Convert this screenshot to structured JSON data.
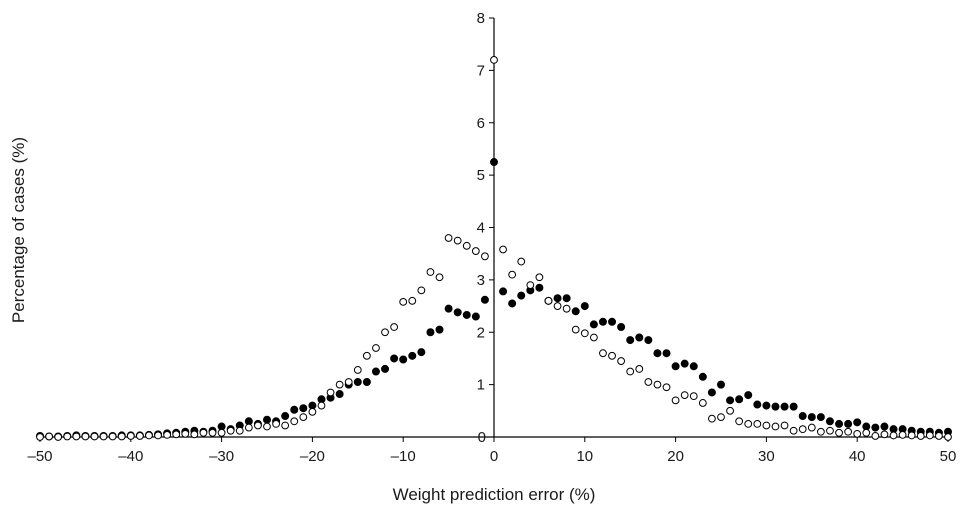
{
  "chart_data": {
    "type": "scatter",
    "title": "",
    "xlabel": "Weight prediction error (%)",
    "ylabel": "Percentage of cases (%)",
    "xlim": [
      -50,
      50
    ],
    "ylim": [
      0,
      8
    ],
    "xticks": [
      -50,
      -40,
      -30,
      -20,
      -10,
      0,
      10,
      20,
      30,
      40,
      50
    ],
    "yticks": [
      1,
      2,
      3,
      4,
      5,
      6,
      7,
      8
    ],
    "x_tick_labels": [
      "–50",
      "–40",
      "–30",
      "–20",
      "–10",
      "0",
      "10",
      "20",
      "30",
      "40",
      "50"
    ],
    "y_tick_labels": [
      "1",
      "2",
      "3",
      "4",
      "5",
      "6",
      "7",
      "8"
    ],
    "grid": false,
    "legend": "none",
    "x": [
      -50,
      -49,
      -48,
      -47,
      -46,
      -45,
      -44,
      -43,
      -42,
      -41,
      -40,
      -39,
      -38,
      -37,
      -36,
      -35,
      -34,
      -33,
      -32,
      -31,
      -30,
      -29,
      -28,
      -27,
      -26,
      -25,
      -24,
      -23,
      -22,
      -21,
      -20,
      -19,
      -18,
      -17,
      -16,
      -15,
      -14,
      -13,
      -12,
      -11,
      -10,
      -9,
      -8,
      -7,
      -6,
      -5,
      -4,
      -3,
      -2,
      -1,
      0,
      1,
      2,
      3,
      4,
      5,
      6,
      7,
      8,
      9,
      10,
      11,
      12,
      13,
      14,
      15,
      16,
      17,
      18,
      19,
      20,
      21,
      22,
      23,
      24,
      25,
      26,
      27,
      28,
      29,
      30,
      31,
      32,
      33,
      34,
      35,
      36,
      37,
      38,
      39,
      40,
      41,
      42,
      43,
      44,
      45,
      46,
      47,
      48,
      49,
      50
    ],
    "series": [
      {
        "marker": "filled",
        "color": "#000000",
        "values": [
          0.02,
          0.01,
          0.01,
          0.02,
          0.03,
          0.02,
          0.02,
          0.02,
          0.02,
          0.03,
          0.03,
          0.03,
          0.04,
          0.05,
          0.07,
          0.08,
          0.1,
          0.12,
          0.1,
          0.12,
          0.2,
          0.15,
          0.22,
          0.3,
          0.25,
          0.33,
          0.3,
          0.4,
          0.52,
          0.55,
          0.6,
          0.72,
          0.75,
          0.82,
          1.0,
          1.05,
          1.05,
          1.25,
          1.3,
          1.5,
          1.48,
          1.55,
          1.62,
          2.0,
          2.05,
          2.45,
          2.38,
          2.33,
          2.3,
          2.62,
          5.25,
          2.78,
          2.55,
          2.7,
          2.8,
          2.85,
          2.6,
          2.65,
          2.65,
          2.4,
          2.5,
          2.15,
          2.2,
          2.2,
          2.1,
          1.85,
          1.9,
          1.85,
          1.6,
          1.6,
          1.35,
          1.4,
          1.35,
          1.15,
          0.85,
          1.0,
          0.7,
          0.72,
          0.8,
          0.62,
          0.6,
          0.58,
          0.58,
          0.58,
          0.4,
          0.38,
          0.38,
          0.3,
          0.25,
          0.25,
          0.28,
          0.2,
          0.18,
          0.2,
          0.15,
          0.15,
          0.12,
          0.1,
          0.1,
          0.08,
          0.1
        ]
      },
      {
        "marker": "hollow",
        "color": "#000000",
        "values": [
          0.0,
          0.01,
          0.0,
          0.01,
          0.01,
          0.01,
          0.01,
          0.01,
          0.01,
          0.01,
          0.02,
          0.02,
          0.03,
          0.03,
          0.04,
          0.05,
          0.06,
          0.05,
          0.08,
          0.08,
          0.08,
          0.12,
          0.12,
          0.18,
          0.22,
          0.2,
          0.25,
          0.22,
          0.3,
          0.38,
          0.48,
          0.6,
          0.85,
          1.0,
          1.05,
          1.28,
          1.55,
          1.7,
          2.0,
          2.1,
          2.58,
          2.6,
          2.8,
          3.15,
          3.05,
          3.8,
          3.75,
          3.65,
          3.55,
          3.45,
          7.2,
          3.58,
          3.1,
          3.35,
          2.9,
          3.05,
          2.6,
          2.5,
          2.45,
          2.05,
          1.98,
          1.9,
          1.6,
          1.55,
          1.45,
          1.25,
          1.3,
          1.05,
          1.0,
          0.95,
          0.7,
          0.8,
          0.78,
          0.65,
          0.35,
          0.38,
          0.5,
          0.3,
          0.25,
          0.25,
          0.22,
          0.2,
          0.22,
          0.12,
          0.15,
          0.18,
          0.1,
          0.12,
          0.08,
          0.1,
          0.06,
          0.08,
          0.02,
          0.05,
          0.03,
          0.04,
          0.03,
          0.02,
          0.03,
          0.02,
          0.0
        ]
      }
    ]
  }
}
